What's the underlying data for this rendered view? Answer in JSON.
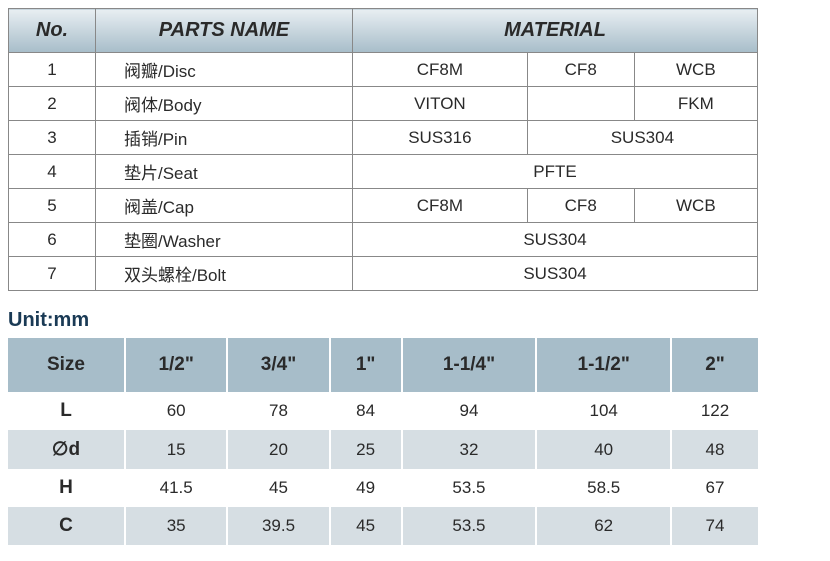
{
  "parts_table": {
    "headers": {
      "no": "No.",
      "name": "PARTS NAME",
      "material": "MATERIAL"
    },
    "rows": [
      {
        "no": "1",
        "name": "阀瓣/Disc",
        "mats": [
          "CF8M",
          "CF8",
          "WCB"
        ]
      },
      {
        "no": "2",
        "name": "阀体/Body",
        "mats": [
          "VITON",
          "",
          "FKM"
        ]
      },
      {
        "no": "3",
        "name": "插销/Pin",
        "mats": [
          "SUS316",
          "SUS304"
        ]
      },
      {
        "no": "4",
        "name": "垫片/Seat",
        "mats": [
          "PFTE"
        ]
      },
      {
        "no": "5",
        "name": "阀盖/Cap",
        "mats": [
          "CF8M",
          "CF8",
          "WCB"
        ]
      },
      {
        "no": "6",
        "name": "垫圈/Washer",
        "mats": [
          "SUS304"
        ]
      },
      {
        "no": "7",
        "name": "双头螺栓/Bolt",
        "mats": [
          "SUS304"
        ]
      }
    ]
  },
  "unit_label": "Unit:mm",
  "dim_table": {
    "size_label": "Size",
    "sizes": [
      "1/2\"",
      "3/4\"",
      "1\"",
      "1-1/4\"",
      "1-1/2\"",
      "2\""
    ],
    "rows": [
      {
        "label": "L",
        "vals": [
          "60",
          "78",
          "84",
          "94",
          "104",
          "122"
        ],
        "shaded": false
      },
      {
        "label": "∅d",
        "vals": [
          "15",
          "20",
          "25",
          "32",
          "40",
          "48"
        ],
        "shaded": true
      },
      {
        "label": "H",
        "vals": [
          "41.5",
          "45",
          "49",
          "53.5",
          "58.5",
          "67"
        ],
        "shaded": false
      },
      {
        "label": "C",
        "vals": [
          "35",
          "39.5",
          "45",
          "53.5",
          "62",
          "74"
        ],
        "shaded": true
      }
    ]
  },
  "styles": {
    "header_gradient_top": "#e8eef2",
    "header_gradient_bottom": "#a7bdc9",
    "dim_header_bg": "#a7bdc9",
    "shaded_row_bg": "#d6dee3",
    "border_color": "#888888",
    "text_color": "#2a2a2a",
    "unit_label_color": "#1a3a55"
  }
}
